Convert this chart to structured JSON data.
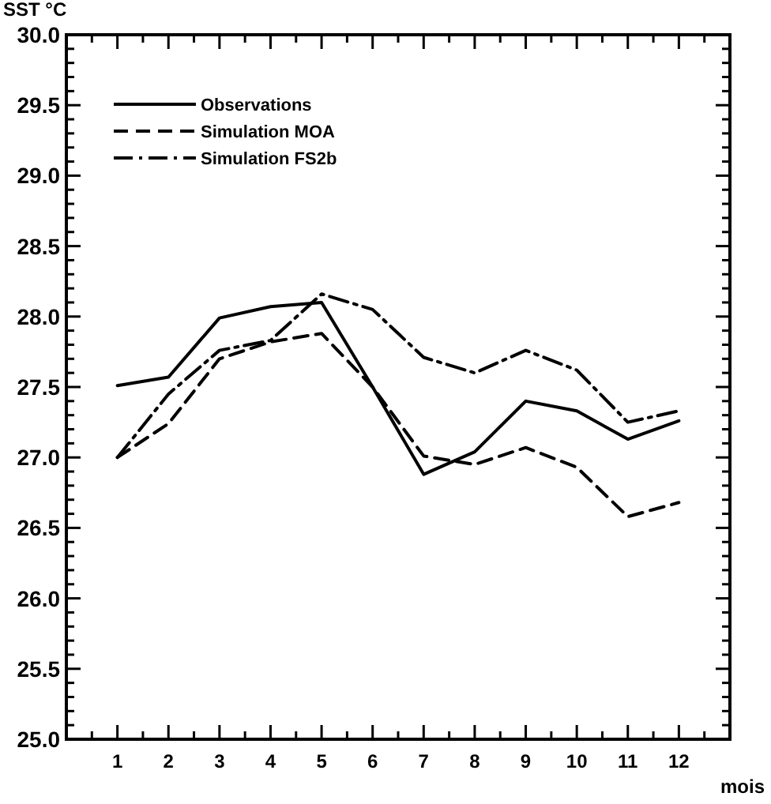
{
  "chart_data": {
    "type": "line",
    "ylabel": "SST °C",
    "xlabel": "mois",
    "x": [
      1,
      2,
      3,
      4,
      5,
      6,
      7,
      8,
      9,
      10,
      11,
      12
    ],
    "series": [
      {
        "name": "Observations",
        "color": "#000000",
        "line_style": "solid",
        "values": [
          27.51,
          27.57,
          27.99,
          28.07,
          28.1,
          27.5,
          26.88,
          27.04,
          27.4,
          27.33,
          27.13,
          27.26
        ]
      },
      {
        "name": "Simulation MOA",
        "color": "#000000",
        "line_style": "dashed",
        "values": [
          27.0,
          27.24,
          27.7,
          27.82,
          27.88,
          27.5,
          27.01,
          26.95,
          27.07,
          26.93,
          26.58,
          26.68
        ]
      },
      {
        "name": "Simulation FS2b",
        "color": "#000000",
        "line_style": "dashdot",
        "values": [
          27.0,
          27.45,
          27.76,
          27.83,
          28.16,
          28.05,
          27.71,
          27.6,
          27.76,
          27.62,
          27.25,
          27.33
        ]
      }
    ],
    "xlim": [
      0,
      13
    ],
    "xticks": [
      {
        "value": 0.5,
        "label": null
      },
      1,
      {
        "value": 1.5,
        "label": null
      },
      2,
      {
        "value": 2.5,
        "label": null
      },
      3,
      {
        "value": 3.5,
        "label": null
      },
      4,
      {
        "value": 4.5,
        "label": null
      },
      5,
      {
        "value": 5.5,
        "label": null
      },
      6,
      {
        "value": 6.5,
        "label": null
      },
      7,
      {
        "value": 7.5,
        "label": null
      },
      8,
      {
        "value": 8.5,
        "label": null
      },
      9,
      {
        "value": 9.5,
        "label": null
      },
      10,
      {
        "value": 10.5,
        "label": null
      },
      11,
      {
        "value": 11.5,
        "label": null
      },
      12,
      {
        "value": 12.5,
        "label": null
      }
    ],
    "ylim": [
      25,
      30
    ],
    "yticks": [
      {
        "value": 25,
        "label": "25.0"
      },
      {
        "value": 25.1,
        "label": null
      },
      {
        "value": 25.2,
        "label": null
      },
      {
        "value": 25.3,
        "label": null
      },
      {
        "value": 25.4,
        "label": null
      },
      25.5,
      {
        "value": 25.6,
        "label": null
      },
      {
        "value": 25.7,
        "label": null
      },
      {
        "value": 25.8,
        "label": null
      },
      {
        "value": 25.9,
        "label": null
      },
      {
        "value": 26,
        "label": "26.0"
      },
      {
        "value": 26.1,
        "label": null
      },
      {
        "value": 26.2,
        "label": null
      },
      {
        "value": 26.3,
        "label": null
      },
      {
        "value": 26.4,
        "label": null
      },
      26.5,
      {
        "value": 26.6,
        "label": null
      },
      {
        "value": 26.7,
        "label": null
      },
      {
        "value": 26.8,
        "label": null
      },
      {
        "value": 26.9,
        "label": null
      },
      {
        "value": 27,
        "label": "27.0"
      },
      {
        "value": 27.1,
        "label": null
      },
      {
        "value": 27.2,
        "label": null
      },
      {
        "value": 27.3,
        "label": null
      },
      {
        "value": 27.4,
        "label": null
      },
      27.5,
      {
        "value": 27.6,
        "label": null
      },
      {
        "value": 27.7,
        "label": null
      },
      {
        "value": 27.8,
        "label": null
      },
      {
        "value": 27.9,
        "label": null
      },
      {
        "value": 28,
        "label": "28.0"
      },
      {
        "value": 28.1,
        "label": null
      },
      {
        "value": 28.2,
        "label": null
      },
      {
        "value": 28.3,
        "label": null
      },
      {
        "value": 28.4,
        "label": null
      },
      28.5,
      {
        "value": 28.6,
        "label": null
      },
      {
        "value": 28.7,
        "label": null
      },
      {
        "value": 28.8,
        "label": null
      },
      {
        "value": 28.9,
        "label": null
      },
      {
        "value": 29,
        "label": "29.0"
      },
      {
        "value": 29.1,
        "label": null
      },
      {
        "value": 29.2,
        "label": null
      },
      {
        "value": 29.3,
        "label": null
      },
      {
        "value": 29.4,
        "label": null
      },
      29.5,
      {
        "value": 29.6,
        "label": null
      },
      {
        "value": 29.7,
        "label": null
      },
      {
        "value": 29.8,
        "label": null
      },
      {
        "value": 29.9,
        "label": null
      },
      {
        "value": 30,
        "label": "30.0"
      }
    ],
    "grid": false,
    "legend": "top left",
    "marker": "none"
  }
}
